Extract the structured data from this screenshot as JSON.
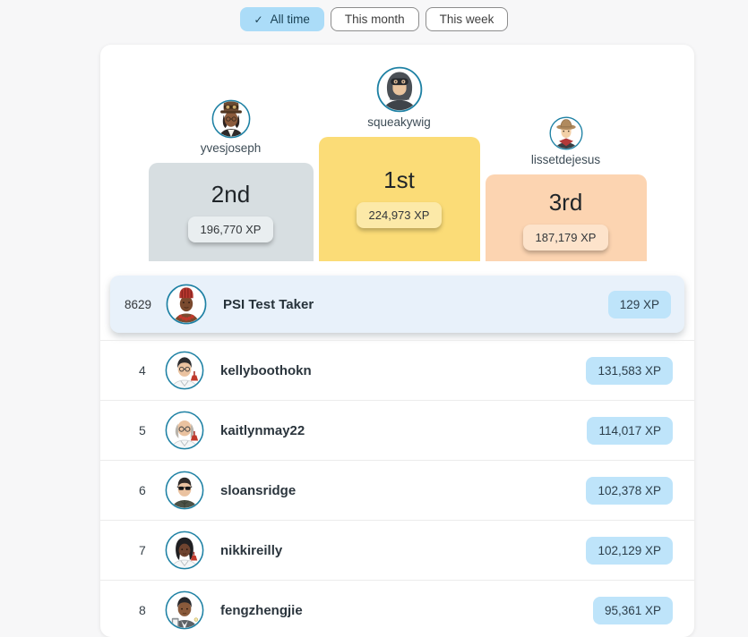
{
  "filters": {
    "check_icon": "✓",
    "all_time_label": "All time",
    "this_month_label": "This month",
    "this_week_label": "This week",
    "selected": "All time"
  },
  "podium": {
    "first": {
      "username": "squeakywig",
      "place_label": "1st",
      "xp": "224,973 XP",
      "avatar": "ninja"
    },
    "second": {
      "username": "yvesjoseph",
      "place_label": "2nd",
      "xp": "196,770 XP",
      "avatar": "steampunk-hat"
    },
    "third": {
      "username": "lissetdejesus",
      "place_label": "3rd",
      "xp": "187,179 XP",
      "avatar": "cowboy"
    }
  },
  "current_user_row": {
    "rank": "8629",
    "username": "PSI Test Taker",
    "xp": "129 XP",
    "avatar": "fez"
  },
  "rows": [
    {
      "rank": "4",
      "username": "kellyboothokn",
      "xp": "131,583 XP",
      "avatar": "scientist-dark-hair"
    },
    {
      "rank": "5",
      "username": "kaitlynmay22",
      "xp": "114,017 XP",
      "avatar": "scientist-bald-glasses"
    },
    {
      "rank": "6",
      "username": "sloansridge",
      "xp": "102,378 XP",
      "avatar": "officer-sunglasses"
    },
    {
      "rank": "7",
      "username": "nikkireilly",
      "xp": "102,129 XP",
      "avatar": "scientist-woman"
    },
    {
      "rank": "8",
      "username": "fengzhengjie",
      "xp": "95,361 XP",
      "avatar": "clipboard-suit"
    }
  ],
  "colors": {
    "page_bg": "#f7f7f8",
    "accent_blue": "#abdcf8",
    "row_badge_blue": "#bee4fa",
    "highlight_row_bg": "#e8f1fa",
    "first_bar": "#fbdc77",
    "first_badge": "#fce9a8",
    "second_bar": "#d7dee1",
    "second_badge": "#e9eef0",
    "third_bar": "#fcd4b1",
    "third_badge": "#fde3cb",
    "avatar_ring": "#1e81a4"
  }
}
